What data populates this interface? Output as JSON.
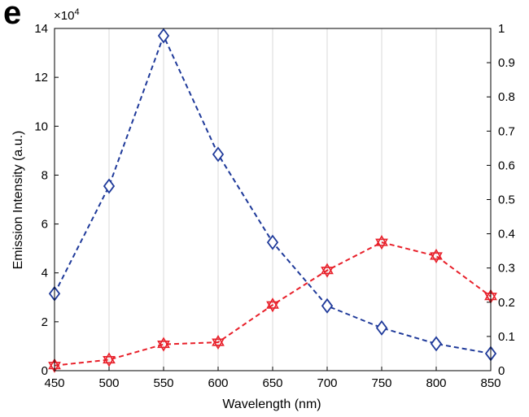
{
  "panel_label": "e",
  "chart_data": {
    "type": "line",
    "title": "",
    "xlabel": "Wavelength (nm)",
    "ylabel": "Emission Intensity (a.u.)",
    "y_multiplier_label": "×10",
    "y_multiplier_exponent": "4",
    "x": [
      450,
      500,
      550,
      600,
      650,
      700,
      750,
      800,
      850
    ],
    "xlim": [
      450,
      850
    ],
    "ylim": [
      0,
      140000
    ],
    "y2lim": [
      0,
      1
    ],
    "grid": "vertical",
    "x_ticks": [
      "450",
      "500",
      "550",
      "600",
      "650",
      "700",
      "750",
      "800",
      "850"
    ],
    "y_ticks": [
      "0",
      "2",
      "4",
      "6",
      "8",
      "10",
      "12",
      "14"
    ],
    "y2_ticks": [
      "0",
      "0.1",
      "0.2",
      "0.3",
      "0.4",
      "0.5",
      "0.6",
      "0.7",
      "0.8",
      "0.9",
      "1"
    ],
    "series": [
      {
        "axis": "left",
        "marker": "diamond",
        "color": "#1f3a9a",
        "values": [
          31500,
          75500,
          137000,
          88500,
          52500,
          26500,
          17500,
          11000,
          7000
        ]
      },
      {
        "axis": "right",
        "marker": "hexagram",
        "color": "#e8202a",
        "values": [
          0.015,
          0.032,
          0.077,
          0.083,
          0.192,
          0.293,
          0.375,
          0.335,
          0.217
        ]
      }
    ]
  }
}
